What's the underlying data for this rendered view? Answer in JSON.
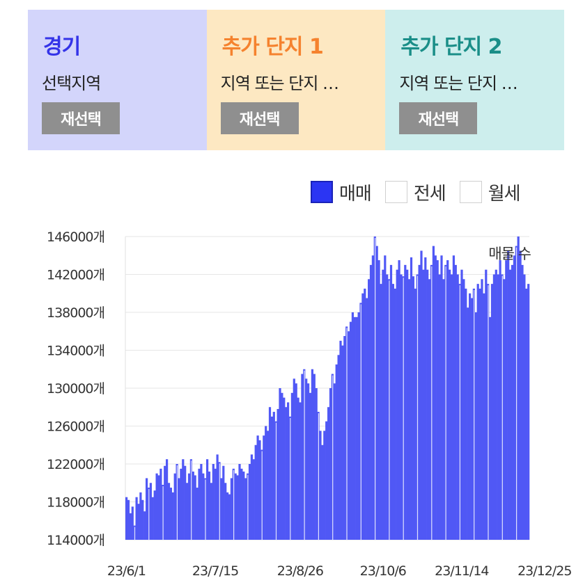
{
  "panels": [
    {
      "title": "경기",
      "subtitle": "선택지역",
      "button": "재선택",
      "bg": "#d3d5fb",
      "title_color": "#3434e8"
    },
    {
      "title": "추가 단지 1",
      "subtitle": "지역 또는 단지 …",
      "button": "재선택",
      "bg": "#fde8c2",
      "title_color": "#f5822e"
    },
    {
      "title": "추가 단지 2",
      "subtitle": "지역 또는 단지 …",
      "button": "재선택",
      "bg": "#cdeeed",
      "title_color": "#1a8e88"
    }
  ],
  "legend": [
    {
      "label": "매매",
      "checked": true
    },
    {
      "label": "전세",
      "checked": false
    },
    {
      "label": "월세",
      "checked": false
    }
  ],
  "chart_data": {
    "type": "bar",
    "series_label": "매물 수",
    "series_color": "#5058f5",
    "ylim": [
      114000,
      146000
    ],
    "yticks": [
      "146000개",
      "142000개",
      "138000개",
      "134000개",
      "130000개",
      "126000개",
      "122000개",
      "118000개",
      "114000개"
    ],
    "xtick_labels": [
      "23/6/1",
      "23/7/15",
      "23/8/26",
      "23/10/6",
      "23/11/14",
      "23/12/25"
    ],
    "start_date": "2023-06-01",
    "grid": true,
    "values": [
      118500,
      118200,
      116800,
      117500,
      115500,
      118500,
      117800,
      119000,
      118200,
      117000,
      120500,
      119500,
      120000,
      118500,
      119200,
      121000,
      120800,
      121500,
      119800,
      121800,
      122500,
      120000,
      119500,
      119000,
      121000,
      122000,
      120500,
      121500,
      122500,
      121800,
      120000,
      121000,
      122500,
      121200,
      120800,
      119500,
      121500,
      122000,
      121000,
      120500,
      122500,
      121200,
      120000,
      122000,
      121500,
      123000,
      122200,
      120500,
      121800,
      120000,
      119000,
      118800,
      120500,
      121500,
      121000,
      120800,
      122000,
      121500,
      121200,
      120500,
      121000,
      122000,
      123000,
      122500,
      124000,
      125000,
      124500,
      123500,
      125000,
      126000,
      125500,
      128000,
      127000,
      127500,
      126500,
      127800,
      130000,
      129500,
      129000,
      128000,
      128500,
      127000,
      129500,
      131000,
      130500,
      129000,
      128500,
      131500,
      132000,
      131000,
      130500,
      129500,
      132000,
      131500,
      130000,
      127500,
      125500,
      124000,
      125500,
      126500,
      128000,
      130000,
      131500,
      130500,
      132500,
      133500,
      135000,
      134500,
      135500,
      136500,
      136000,
      137000,
      138000,
      137500,
      137500,
      138000,
      139000,
      140000,
      140500,
      139500,
      141500,
      143000,
      144000,
      146000,
      145000,
      143500,
      141000,
      142500,
      144000,
      142000,
      141500,
      143000,
      141000,
      140500,
      142500,
      143500,
      142000,
      141800,
      143000,
      142500,
      141500,
      143800,
      141800,
      140500,
      142000,
      143000,
      144500,
      142500,
      143800,
      142500,
      141500,
      143000,
      145000,
      144000,
      143500,
      142000,
      144000,
      141500,
      143000,
      143500,
      142500,
      142000,
      144000,
      143000,
      142000,
      141000,
      142500,
      141500,
      140500,
      138500,
      140000,
      139500,
      140500,
      138000,
      141000,
      140500,
      141500,
      140000,
      142500,
      141000,
      137500,
      141000,
      142000,
      142500,
      142000,
      143500,
      142000,
      141500,
      143500,
      144500,
      142500,
      143000,
      144000,
      145000,
      146000,
      144500,
      143000,
      142000,
      140500,
      141000
    ]
  }
}
